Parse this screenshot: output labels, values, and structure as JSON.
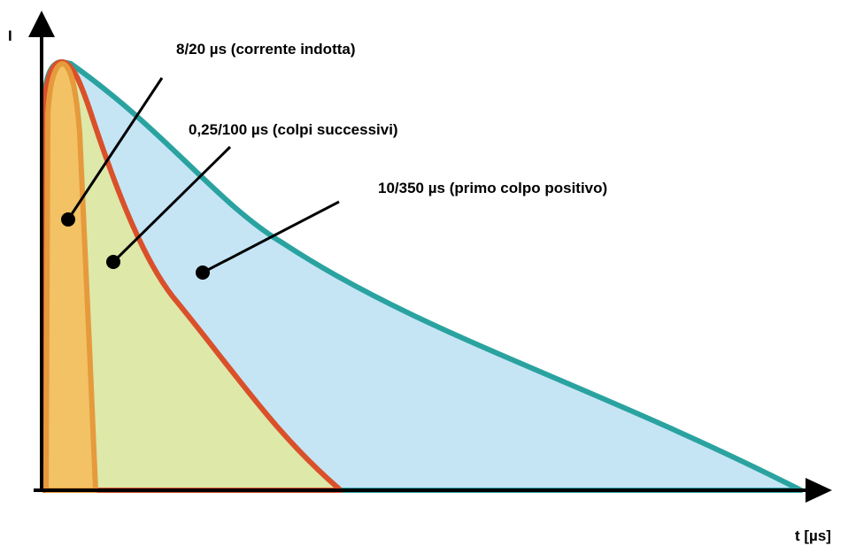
{
  "axes": {
    "y_label": "I",
    "x_label": "t [µs]"
  },
  "waveforms": [
    {
      "label": "8/20 µs (corrente indotta)",
      "fill_color": "#F2C265",
      "stroke_color": "#E69A3C"
    },
    {
      "label": "0,25/100 µs (colpi successivi)",
      "fill_color": "#DDE8A9",
      "stroke_color": "#D9502A"
    },
    {
      "label": "10/350 µs (primo colpo positivo)",
      "fill_color": "#C5E5F5",
      "stroke_color": "#2AA3A0"
    }
  ],
  "colors": {
    "axis": "#000000",
    "leader": "#000000",
    "background": "#FFFFFF"
  }
}
